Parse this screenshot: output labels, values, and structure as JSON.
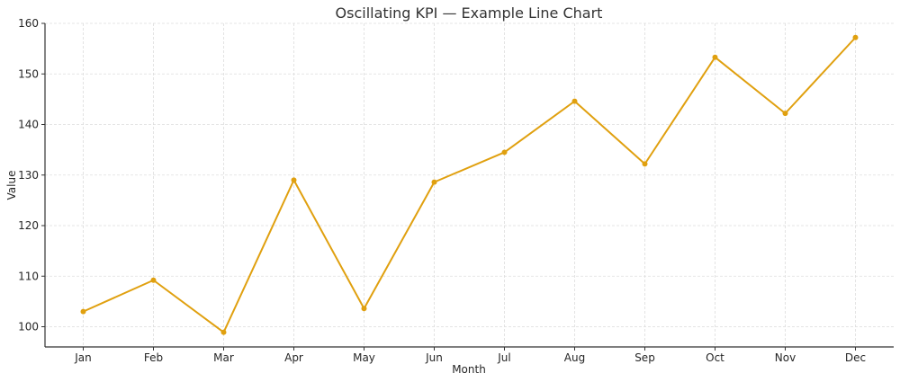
{
  "chart_data": {
    "type": "line",
    "title": "Oscillating KPI — Example Line Chart",
    "xlabel": "Month",
    "ylabel": "Value",
    "categories": [
      "Jan",
      "Feb",
      "Mar",
      "Apr",
      "May",
      "Jun",
      "Jul",
      "Aug",
      "Sep",
      "Oct",
      "Nov",
      "Dec"
    ],
    "series": [
      {
        "values": [
          103.0,
          109.2,
          98.9,
          129.0,
          103.6,
          128.6,
          134.5,
          144.6,
          132.2,
          153.3,
          142.2,
          157.2
        ],
        "color": "#e0a00f",
        "marker": "circle"
      }
    ],
    "ylim": [
      96,
      160
    ],
    "yticks": [
      100,
      110,
      120,
      130,
      140,
      150,
      160
    ],
    "grid": true,
    "legend": "none"
  }
}
